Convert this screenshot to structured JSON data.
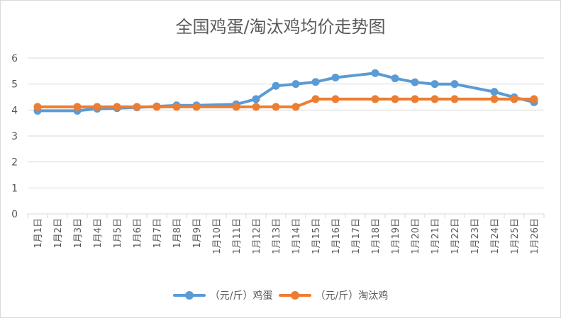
{
  "chart_data": {
    "type": "line",
    "title": "全国鸡蛋/淘汰鸡均价走势图",
    "categories": [
      "1月1日",
      "1月2日",
      "1月3日",
      "1月4日",
      "1月5日",
      "1月6日",
      "1月7日",
      "1月8日",
      "1月9日",
      "1月10日",
      "1月11日",
      "1月12日",
      "1月13日",
      "1月14日",
      "1月15日",
      "1月16日",
      "1月17日",
      "1月18日",
      "1月19日",
      "1月20日",
      "1月21日",
      "1月22日",
      "1月23日",
      "1月24日",
      "1月25日",
      "1月26日"
    ],
    "ylim": [
      0,
      6
    ],
    "yticks": [
      "0",
      "1",
      "2",
      "3",
      "4",
      "5",
      "6"
    ],
    "grid": true,
    "legend_position": "bottom",
    "series": [
      {
        "name": "（元/斤）鸡蛋",
        "color": "#5b9bd5",
        "values": [
          3.97,
          null,
          3.97,
          4.05,
          4.07,
          4.1,
          4.14,
          4.18,
          4.18,
          null,
          4.22,
          4.42,
          4.93,
          5.0,
          5.08,
          5.25,
          null,
          5.42,
          5.22,
          5.07,
          5.0,
          5.0,
          null,
          4.7,
          4.49,
          4.3
        ]
      },
      {
        "name": "（元/斤）淘汰鸡",
        "color": "#ed7d31",
        "values": [
          4.12,
          null,
          4.12,
          4.12,
          4.12,
          4.12,
          4.12,
          4.12,
          4.12,
          null,
          4.12,
          4.12,
          4.12,
          4.12,
          4.42,
          4.42,
          null,
          4.42,
          4.42,
          4.42,
          4.42,
          4.42,
          null,
          4.42,
          4.42,
          4.42
        ]
      }
    ]
  }
}
